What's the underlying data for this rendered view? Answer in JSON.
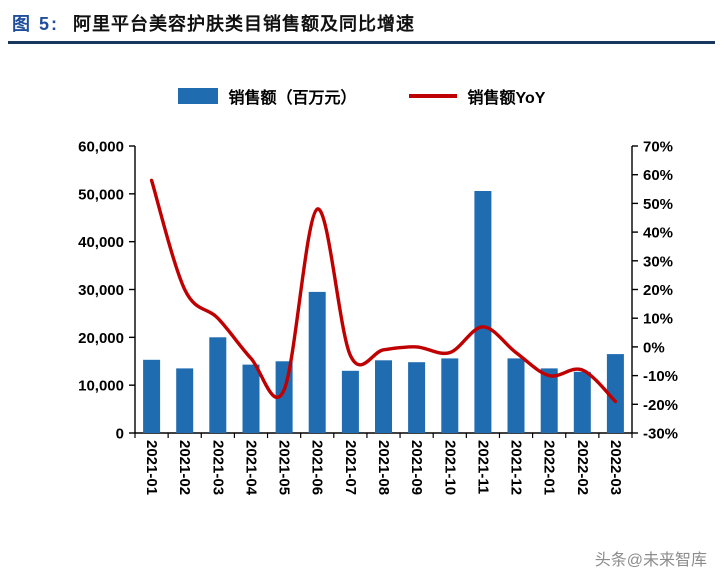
{
  "header": {
    "figure_label": "图 5:",
    "title": "阿里平台美容护肤类目销售额及同比增速"
  },
  "legend": {
    "bars": "销售额（百万元）",
    "line": "销售额YoY"
  },
  "watermark": "头条@未来智库",
  "colors": {
    "bar": "#1F6CB0",
    "line": "#C00000",
    "figure_label": "#1F4E9C",
    "rule": "#17375E",
    "axis": "#000000",
    "watermark": "#8C8C8C"
  },
  "chart_data": {
    "type": "bar+line",
    "title": "阿里平台美容护肤类目销售额及同比增速",
    "categories": [
      "2021-01",
      "2021-02",
      "2021-03",
      "2021-04",
      "2021-05",
      "2021-06",
      "2021-07",
      "2021-08",
      "2021-09",
      "2021-10",
      "2021-11",
      "2021-12",
      "2022-01",
      "2022-02",
      "2022-03"
    ],
    "series": [
      {
        "name": "销售额（百万元）",
        "type": "bar",
        "axis": "left",
        "values": [
          15300,
          13500,
          20000,
          14300,
          15000,
          29500,
          13000,
          15200,
          14800,
          15600,
          50600,
          15600,
          13500,
          12800,
          16500
        ]
      },
      {
        "name": "销售额YoY",
        "type": "line",
        "axis": "right",
        "values": [
          58,
          20,
          10,
          -4,
          -15,
          48,
          -3,
          -1,
          0,
          -2,
          7,
          -2,
          -10,
          -8,
          -19
        ]
      }
    ],
    "left_axis": {
      "min": 0,
      "max": 60000,
      "tick_values": [
        0,
        10000,
        20000,
        30000,
        40000,
        50000,
        60000
      ],
      "tick_labels": [
        "0",
        "10,000",
        "20,000",
        "30,000",
        "40,000",
        "50,000",
        "60,000"
      ]
    },
    "right_axis": {
      "min": -30,
      "max": 70,
      "tick_values": [
        -30,
        -20,
        -10,
        0,
        10,
        20,
        30,
        40,
        50,
        60,
        70
      ],
      "tick_labels": [
        "-30%",
        "-20%",
        "-10%",
        "0%",
        "10%",
        "20%",
        "30%",
        "40%",
        "50%",
        "60%",
        "70%"
      ]
    },
    "grid": false,
    "legend_position": "top"
  }
}
